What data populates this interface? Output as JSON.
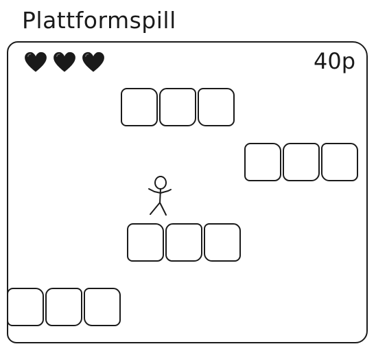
{
  "title": "Plattformspill",
  "hud": {
    "lives": 3,
    "hearts": [
      "heart-icon",
      "heart-icon",
      "heart-icon"
    ],
    "score": "40p"
  },
  "colors": {
    "ink": "#1a1a1a",
    "background": "#ffffff"
  },
  "sprites": {
    "player": "stick-figure-icon"
  }
}
